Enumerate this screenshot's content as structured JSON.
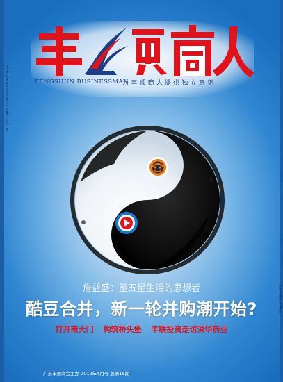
{
  "colors": {
    "brand_red": "#e3121a",
    "brand_navy": "#1d3e86",
    "sky_blue": "#2f86d1",
    "play_blue": "#1778d1",
    "mascot_orange": "#f07a1a"
  },
  "masthead": {
    "logo_text": "丰顺商人",
    "english_name": "FENGSHUN BUSINESSMAN",
    "tagline": "为丰顺商人提供独立意见"
  },
  "spine": {
    "left_text": "FENGSHUN BUSINESSMAN 2012.4",
    "right_text": "广东丰顺商会主办"
  },
  "cover_story": {
    "sub_headline": "詹益盛：塑五星生活的思想者",
    "headline": "酷豆合并，新一轮并购潮开始?",
    "subheads": [
      "打开南大门",
      "构筑桥头堡",
      "丰联投资走访深华药业"
    ]
  },
  "icons": {
    "top_dot": "cartoon-face-icon",
    "bottom_dot": "play-button-icon"
  },
  "footer": {
    "text": "广东丰顺商会主办  2012年4月号 总第18期"
  }
}
